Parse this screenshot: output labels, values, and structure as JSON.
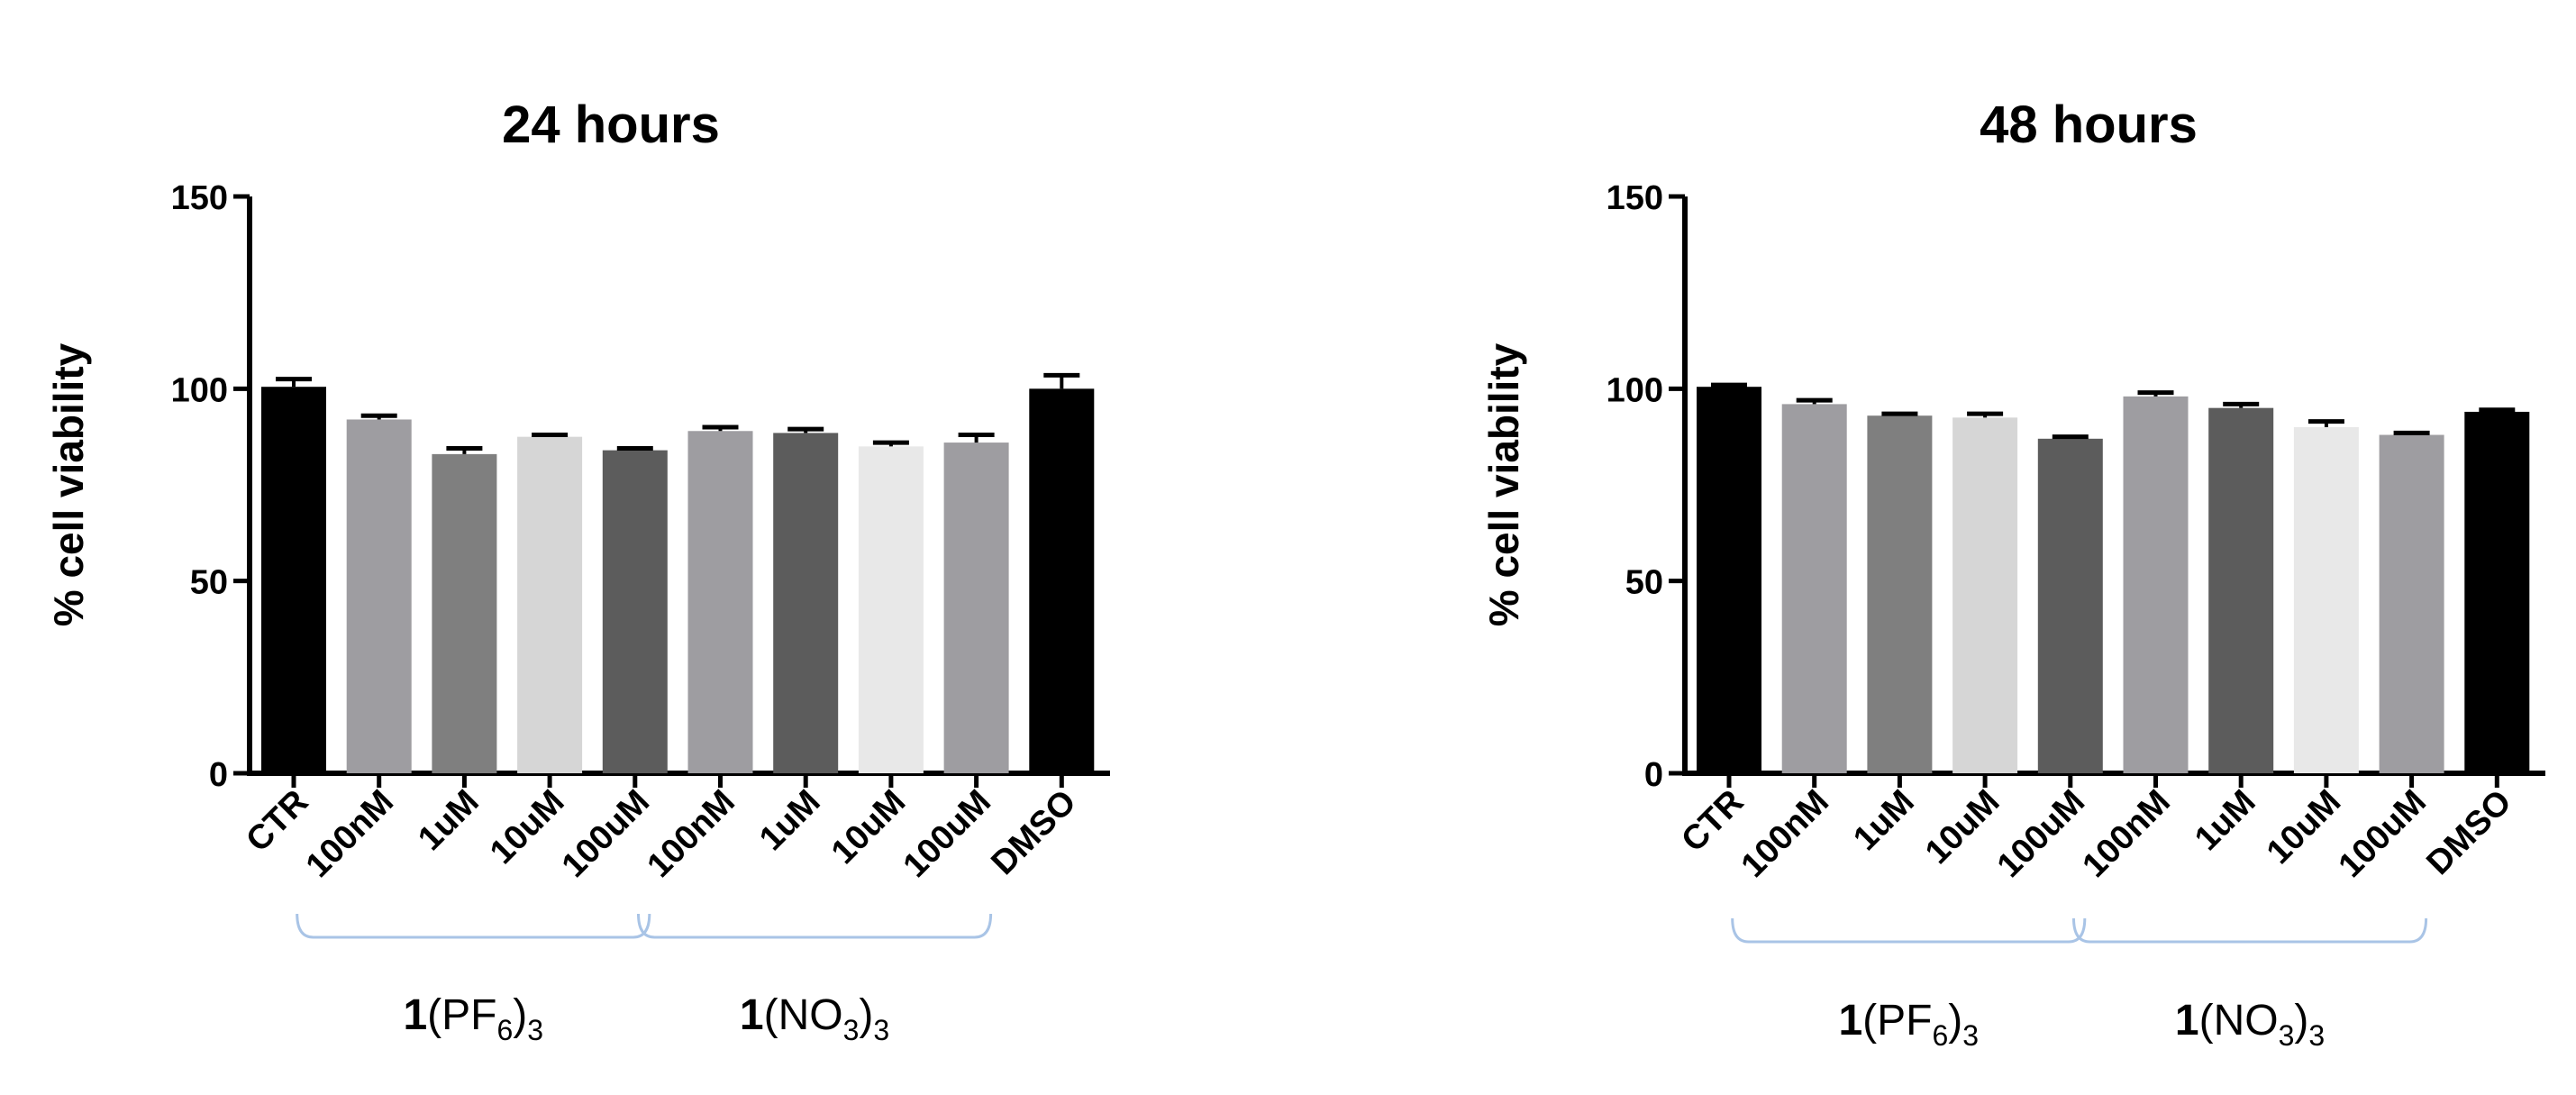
{
  "chart_data": [
    {
      "type": "bar",
      "title": "24 hours",
      "ylabel": "% cell viability",
      "xlabel": "",
      "ylim": [
        0,
        150
      ],
      "yticks": [
        0,
        50,
        100,
        150
      ],
      "categories": [
        "CTR",
        "100nM",
        "1uM",
        "10uM",
        "100uM",
        "100nM",
        "1uM",
        "10uM",
        "100uM",
        "DMSO"
      ],
      "values": [
        100.5,
        92,
        83,
        87.5,
        84,
        89,
        88.5,
        85,
        86,
        100
      ],
      "errors": [
        2,
        1,
        1.5,
        0.5,
        0.5,
        1,
        1,
        1,
        2,
        3.5
      ],
      "bar_colors": [
        "#000000",
        "#9e9da1",
        "#7f7f7f",
        "#d6d6d6",
        "#5c5c5c",
        "#9e9da1",
        "#5c5c5c",
        "#e8e8e8",
        "#9e9da1",
        "#000000"
      ],
      "groups": [
        {
          "label_main": "1",
          "label_rest": "(PF",
          "sub": "6",
          "close": ")",
          "post_sub": "3",
          "from": 1,
          "to": 4
        },
        {
          "label_main": "1",
          "label_rest": "(NO",
          "sub": "3",
          "close": ")",
          "post_sub": "3",
          "from": 5,
          "to": 8
        }
      ],
      "bracket_color": "#a9c4e6"
    },
    {
      "type": "bar",
      "title": "48 hours",
      "ylabel": "% cell viability",
      "xlabel": "",
      "ylim": [
        0,
        150
      ],
      "yticks": [
        0,
        50,
        100,
        150
      ],
      "categories": [
        "CTR",
        "100nM",
        "1uM",
        "10uM",
        "100uM",
        "100nM",
        "1uM",
        "10uM",
        "100uM",
        "DMSO"
      ],
      "values": [
        100.5,
        96,
        93,
        92.5,
        87,
        98,
        95,
        90,
        88,
        94
      ],
      "errors": [
        0.5,
        1,
        0.5,
        1,
        0.5,
        1,
        1,
        1.5,
        0.5,
        0.5
      ],
      "bar_colors": [
        "#000000",
        "#9e9da1",
        "#7f7f7f",
        "#d6d6d6",
        "#5c5c5c",
        "#9e9da1",
        "#5c5c5c",
        "#e8e8e8",
        "#9e9da1",
        "#000000"
      ],
      "groups": [
        {
          "label_main": "1",
          "label_rest": "(PF",
          "sub": "6",
          "close": ")",
          "post_sub": "3",
          "from": 1,
          "to": 4
        },
        {
          "label_main": "1",
          "label_rest": "(NO",
          "sub": "3",
          "close": ")",
          "post_sub": "3",
          "from": 5,
          "to": 8
        }
      ],
      "bracket_color": "#a9c4e6"
    }
  ]
}
